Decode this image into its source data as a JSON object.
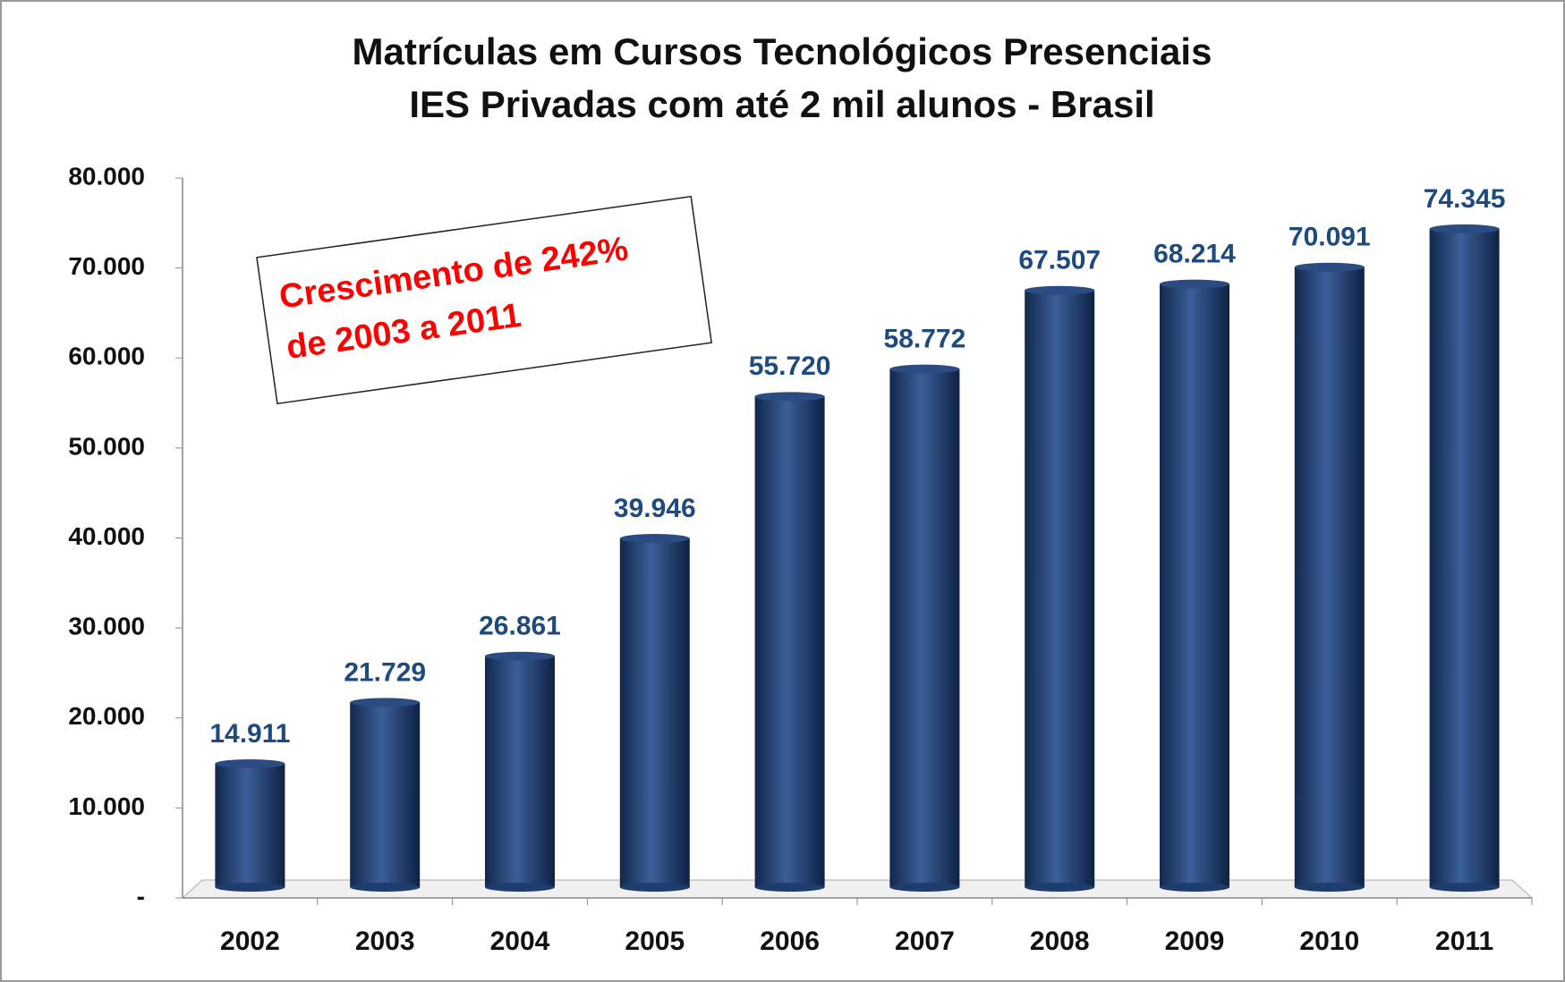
{
  "chart_data": {
    "type": "bar",
    "title": [
      "Matrículas em Cursos Tecnológicos Presenciais",
      "IES Privadas com até 2 mil alunos - Brasil"
    ],
    "annotation": [
      "Crescimento de 242%",
      "de 2003 a 2011"
    ],
    "categories": [
      "2002",
      "2003",
      "2004",
      "2005",
      "2006",
      "2007",
      "2008",
      "2009",
      "2010",
      "2011"
    ],
    "values": [
      14911,
      21729,
      26861,
      39946,
      55720,
      58772,
      67507,
      68214,
      70091,
      74345
    ],
    "value_labels": [
      "14.911",
      "21.729",
      "26.861",
      "39.946",
      "55.720",
      "58.772",
      "67.507",
      "68.214",
      "70.091",
      "74.345"
    ],
    "color": "#1f3c6e",
    "ylim": [
      0,
      80000
    ],
    "yticks": [
      {
        "value": 0,
        "label": "-"
      },
      {
        "value": 10000,
        "label": "10.000"
      },
      {
        "value": 20000,
        "label": "20.000"
      },
      {
        "value": 30000,
        "label": "30.000"
      },
      {
        "value": 40000,
        "label": "40.000"
      },
      {
        "value": 50000,
        "label": "50.000"
      },
      {
        "value": 60000,
        "label": "60.000"
      },
      {
        "value": 70000,
        "label": "70.000"
      },
      {
        "value": 80000,
        "label": "80.000"
      }
    ],
    "grid": false
  }
}
